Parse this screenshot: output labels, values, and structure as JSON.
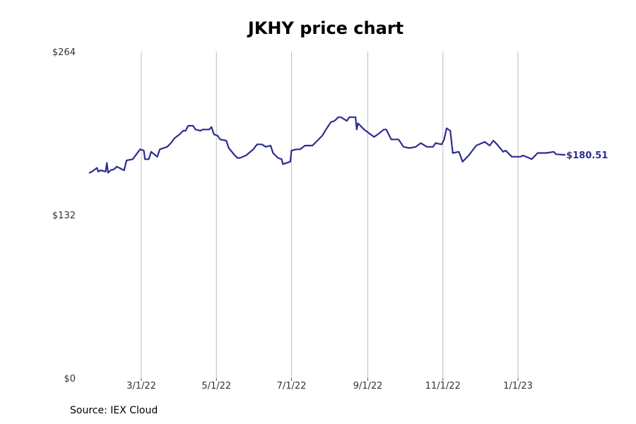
{
  "chart_data": {
    "type": "line",
    "title": "JKHY price chart",
    "xlabel": "",
    "ylabel": "",
    "ylim": [
      0,
      264
    ],
    "y_ticks": [
      "$264",
      "$132",
      "$0"
    ],
    "y_tick_values": [
      264,
      132,
      0
    ],
    "x_ticks": [
      "3/1/22",
      "5/1/22",
      "7/1/22",
      "9/1/22",
      "11/1/22",
      "1/1/23"
    ],
    "x_tick_dates": [
      "2022-03-01",
      "2022-05-01",
      "2022-07-01",
      "2022-09-01",
      "2022-11-01",
      "2023-01-01"
    ],
    "x_range": [
      "2022-01-15",
      "2023-04-30"
    ],
    "grid": "vertical",
    "series": [
      {
        "color": "#2e2d8f",
        "last_value_label": "$180.51",
        "points": [
          [
            "2022-01-18",
            166
          ],
          [
            "2022-01-20",
            167
          ],
          [
            "2022-01-24",
            170
          ],
          [
            "2022-01-25",
            167
          ],
          [
            "2022-01-27",
            168
          ],
          [
            "2022-01-31",
            167
          ],
          [
            "2022-02-01",
            174
          ],
          [
            "2022-02-02",
            166
          ],
          [
            "2022-02-04",
            168
          ],
          [
            "2022-02-07",
            169
          ],
          [
            "2022-02-09",
            171
          ],
          [
            "2022-02-11",
            170
          ],
          [
            "2022-02-15",
            168
          ],
          [
            "2022-02-17",
            176
          ],
          [
            "2022-02-22",
            177
          ],
          [
            "2022-02-25",
            181
          ],
          [
            "2022-02-28",
            185
          ],
          [
            "2022-03-03",
            184
          ],
          [
            "2022-03-04",
            177
          ],
          [
            "2022-03-07",
            177
          ],
          [
            "2022-03-09",
            183
          ],
          [
            "2022-03-14",
            179
          ],
          [
            "2022-03-16",
            185
          ],
          [
            "2022-03-22",
            187
          ],
          [
            "2022-03-25",
            190
          ],
          [
            "2022-03-28",
            194
          ],
          [
            "2022-04-01",
            197
          ],
          [
            "2022-04-04",
            200
          ],
          [
            "2022-04-06",
            200
          ],
          [
            "2022-04-08",
            204
          ],
          [
            "2022-04-12",
            204
          ],
          [
            "2022-04-14",
            201
          ],
          [
            "2022-04-18",
            200
          ],
          [
            "2022-04-20",
            201
          ],
          [
            "2022-04-25",
            201
          ],
          [
            "2022-04-27",
            203
          ],
          [
            "2022-04-29",
            197
          ],
          [
            "2022-05-02",
            196
          ],
          [
            "2022-05-04",
            193
          ],
          [
            "2022-05-09",
            192
          ],
          [
            "2022-05-11",
            186
          ],
          [
            "2022-05-16",
            180
          ],
          [
            "2022-05-18",
            178
          ],
          [
            "2022-05-20",
            178
          ],
          [
            "2022-05-25",
            180
          ],
          [
            "2022-05-31",
            185
          ],
          [
            "2022-06-03",
            189
          ],
          [
            "2022-06-07",
            189
          ],
          [
            "2022-06-10",
            187
          ],
          [
            "2022-06-14",
            188
          ],
          [
            "2022-06-16",
            182
          ],
          [
            "2022-06-20",
            178
          ],
          [
            "2022-06-23",
            177
          ],
          [
            "2022-06-24",
            173
          ],
          [
            "2022-06-30",
            175
          ],
          [
            "2022-07-01",
            184
          ],
          [
            "2022-07-05",
            185
          ],
          [
            "2022-07-08",
            185
          ],
          [
            "2022-07-12",
            188
          ],
          [
            "2022-07-18",
            188
          ],
          [
            "2022-07-22",
            192
          ],
          [
            "2022-07-26",
            196
          ],
          [
            "2022-07-29",
            201
          ],
          [
            "2022-08-02",
            207
          ],
          [
            "2022-08-05",
            208
          ],
          [
            "2022-08-08",
            211
          ],
          [
            "2022-08-10",
            211
          ],
          [
            "2022-08-15",
            208
          ],
          [
            "2022-08-17",
            211
          ],
          [
            "2022-08-22",
            211
          ],
          [
            "2022-08-23",
            201
          ],
          [
            "2022-08-24",
            206
          ],
          [
            "2022-08-29",
            201
          ],
          [
            "2022-09-02",
            198
          ],
          [
            "2022-09-06",
            195
          ],
          [
            "2022-09-09",
            197
          ],
          [
            "2022-09-14",
            201
          ],
          [
            "2022-09-16",
            201
          ],
          [
            "2022-09-20",
            193
          ],
          [
            "2022-09-26",
            193
          ],
          [
            "2022-09-30",
            187
          ],
          [
            "2022-10-05",
            186
          ],
          [
            "2022-10-10",
            187
          ],
          [
            "2022-10-14",
            190
          ],
          [
            "2022-10-19",
            187
          ],
          [
            "2022-10-24",
            187
          ],
          [
            "2022-10-26",
            190
          ],
          [
            "2022-10-31",
            189
          ],
          [
            "2022-11-02",
            193
          ],
          [
            "2022-11-04",
            202
          ],
          [
            "2022-11-07",
            200
          ],
          [
            "2022-11-09",
            182
          ],
          [
            "2022-11-14",
            183
          ],
          [
            "2022-11-17",
            175
          ],
          [
            "2022-11-22",
            180
          ],
          [
            "2022-11-28",
            188
          ],
          [
            "2022-12-05",
            191
          ],
          [
            "2022-12-09",
            188
          ],
          [
            "2022-12-12",
            192
          ],
          [
            "2022-12-15",
            189
          ],
          [
            "2022-12-20",
            183
          ],
          [
            "2022-12-22",
            184
          ],
          [
            "2022-12-27",
            179
          ],
          [
            "2023-01-03",
            179
          ],
          [
            "2023-01-05",
            180
          ],
          [
            "2023-01-10",
            178
          ],
          [
            "2023-01-12",
            177
          ],
          [
            "2023-01-17",
            182
          ],
          [
            "2023-01-24",
            182
          ],
          [
            "2023-01-30",
            183
          ],
          [
            "2023-02-01",
            181
          ],
          [
            "2023-02-08",
            180.51
          ]
        ]
      }
    ]
  },
  "source": "Source: IEX Cloud"
}
